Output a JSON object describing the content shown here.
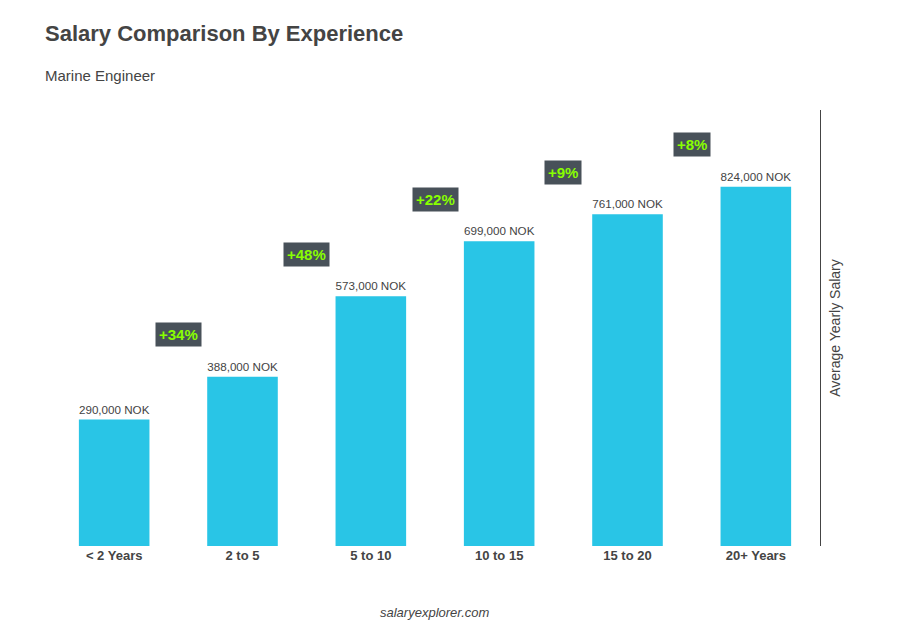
{
  "chart_data": {
    "type": "bar",
    "title": "Salary Comparison By Experience",
    "subtitle": "Marine Engineer",
    "categories": [
      "< 2 Years",
      "2 to 5",
      "5 to 10",
      "10 to 15",
      "15 to 20",
      "20+ Years"
    ],
    "values": [
      290000,
      388000,
      573000,
      699000,
      761000,
      824000
    ],
    "value_labels": [
      "290,000 NOK",
      "388,000 NOK",
      "573,000 NOK",
      "699,000 NOK",
      "761,000 NOK",
      "824,000 NOK"
    ],
    "data_labels": true,
    "color": "#29c5e6",
    "ylabel": "Average Yearly Salary",
    "ylim": [
      0,
      1000000
    ],
    "tick_labels": "x",
    "grid": false,
    "annotations": [
      {
        "text": "+34%",
        "color": "#88ff00"
      },
      {
        "text": "+48%",
        "color": "#88ff00"
      },
      {
        "text": "+22%",
        "color": "#88ff00"
      },
      {
        "text": "+9%",
        "color": "#88ff00"
      },
      {
        "text": "+8%",
        "color": "#88ff00"
      }
    ],
    "footer": "salaryexplorer.com"
  }
}
